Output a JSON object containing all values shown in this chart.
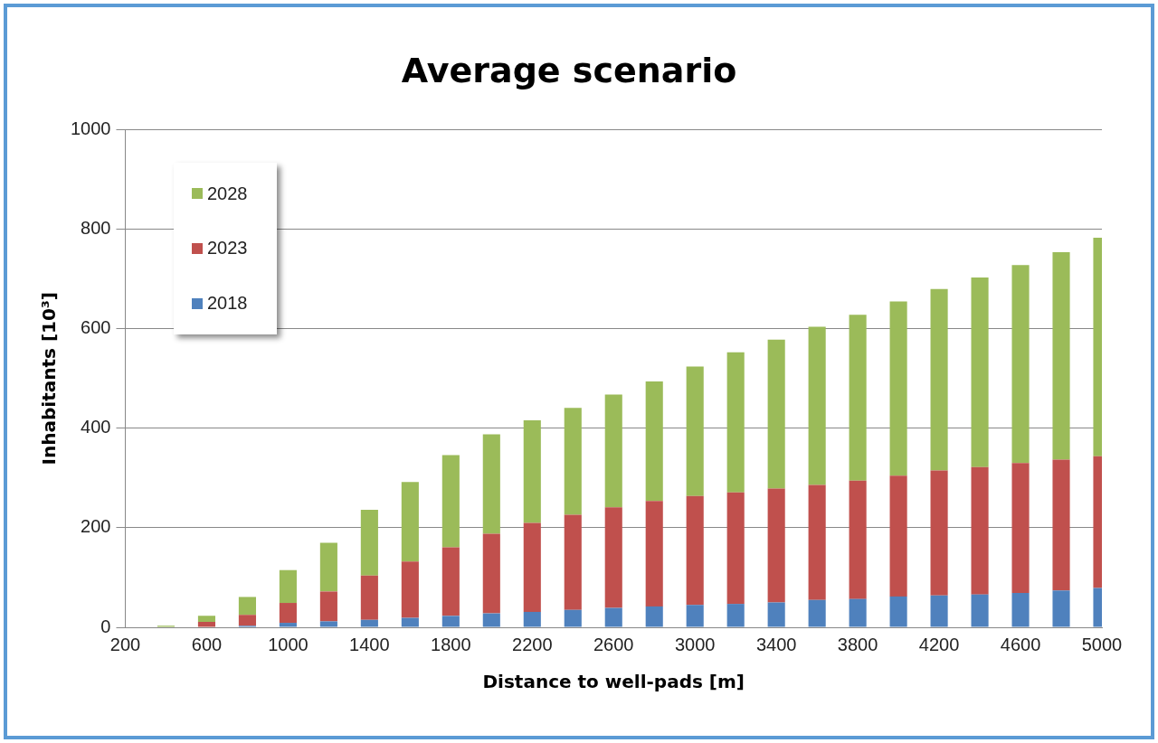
{
  "chart_data": {
    "type": "bar",
    "stacked": true,
    "title": "Average scenario",
    "xlabel": "Distance to well-pads [m]",
    "ylabel": "Inhabitants [10³]",
    "categories": [
      "200",
      null,
      "600",
      null,
      "1000",
      null,
      "1400",
      null,
      "1800",
      null,
      "2200",
      null,
      "2600",
      null,
      "3000",
      null,
      "3400",
      null,
      "3800",
      null,
      "4200",
      null,
      "4600",
      null,
      "5000"
    ],
    "series": [
      {
        "name": "2018",
        "color": "#4f81bd",
        "values": [
          0,
          0,
          0,
          3,
          9,
          12,
          15,
          19,
          23,
          28,
          31,
          35,
          39,
          42,
          45,
          47,
          50,
          55,
          57,
          62,
          64,
          66,
          69,
          74,
          79
        ]
      },
      {
        "name": "2023",
        "color": "#c0504d",
        "values": [
          0,
          1,
          11,
          22,
          40,
          60,
          89,
          113,
          138,
          160,
          179,
          191,
          202,
          212,
          219,
          224,
          229,
          231,
          238,
          243,
          251,
          256,
          261,
          263,
          265
        ]
      },
      {
        "name": "2028",
        "color": "#9bbb59",
        "values": [
          0,
          2,
          12,
          36,
          66,
          98,
          132,
          160,
          185,
          200,
          206,
          215,
          227,
          240,
          260,
          282,
          299,
          318,
          333,
          350,
          365,
          381,
          398,
          417,
          439
        ]
      }
    ],
    "ylim": [
      0,
      1000
    ],
    "yticks": [
      0,
      200,
      400,
      600,
      800,
      1000
    ],
    "grid": "y",
    "legend": "top left"
  }
}
